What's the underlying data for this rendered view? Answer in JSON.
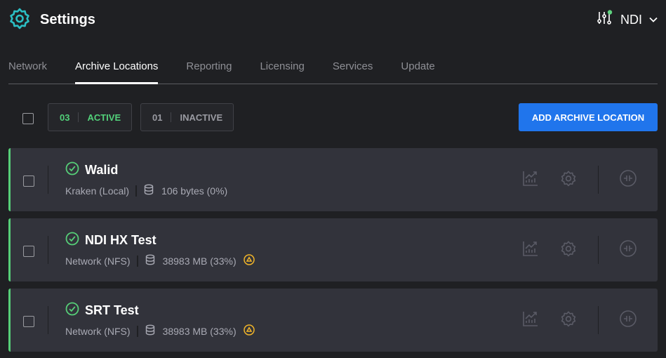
{
  "header": {
    "title": "Settings",
    "user": "NDI",
    "status_color": "#5fd37f",
    "accent": "#2bbfc4"
  },
  "tabs": [
    {
      "label": "Network"
    },
    {
      "label": "Archive Locations",
      "active": true
    },
    {
      "label": "Reporting"
    },
    {
      "label": "Licensing"
    },
    {
      "label": "Services"
    },
    {
      "label": "Update"
    }
  ],
  "filters": {
    "active": {
      "count": "03",
      "label": "ACTIVE"
    },
    "inactive": {
      "count": "01",
      "label": "INACTIVE"
    }
  },
  "add_button": "ADD ARCHIVE LOCATION",
  "locations": [
    {
      "name": "Walid",
      "type": "Kraken (Local)",
      "usage": "106 bytes (0%)",
      "warning": false
    },
    {
      "name": "NDI HX Test",
      "type": "Network (NFS)",
      "usage": "38983 MB (33%)",
      "warning": true
    },
    {
      "name": "SRT Test",
      "type": "Network (NFS)",
      "usage": "38983 MB (33%)",
      "warning": true
    }
  ]
}
